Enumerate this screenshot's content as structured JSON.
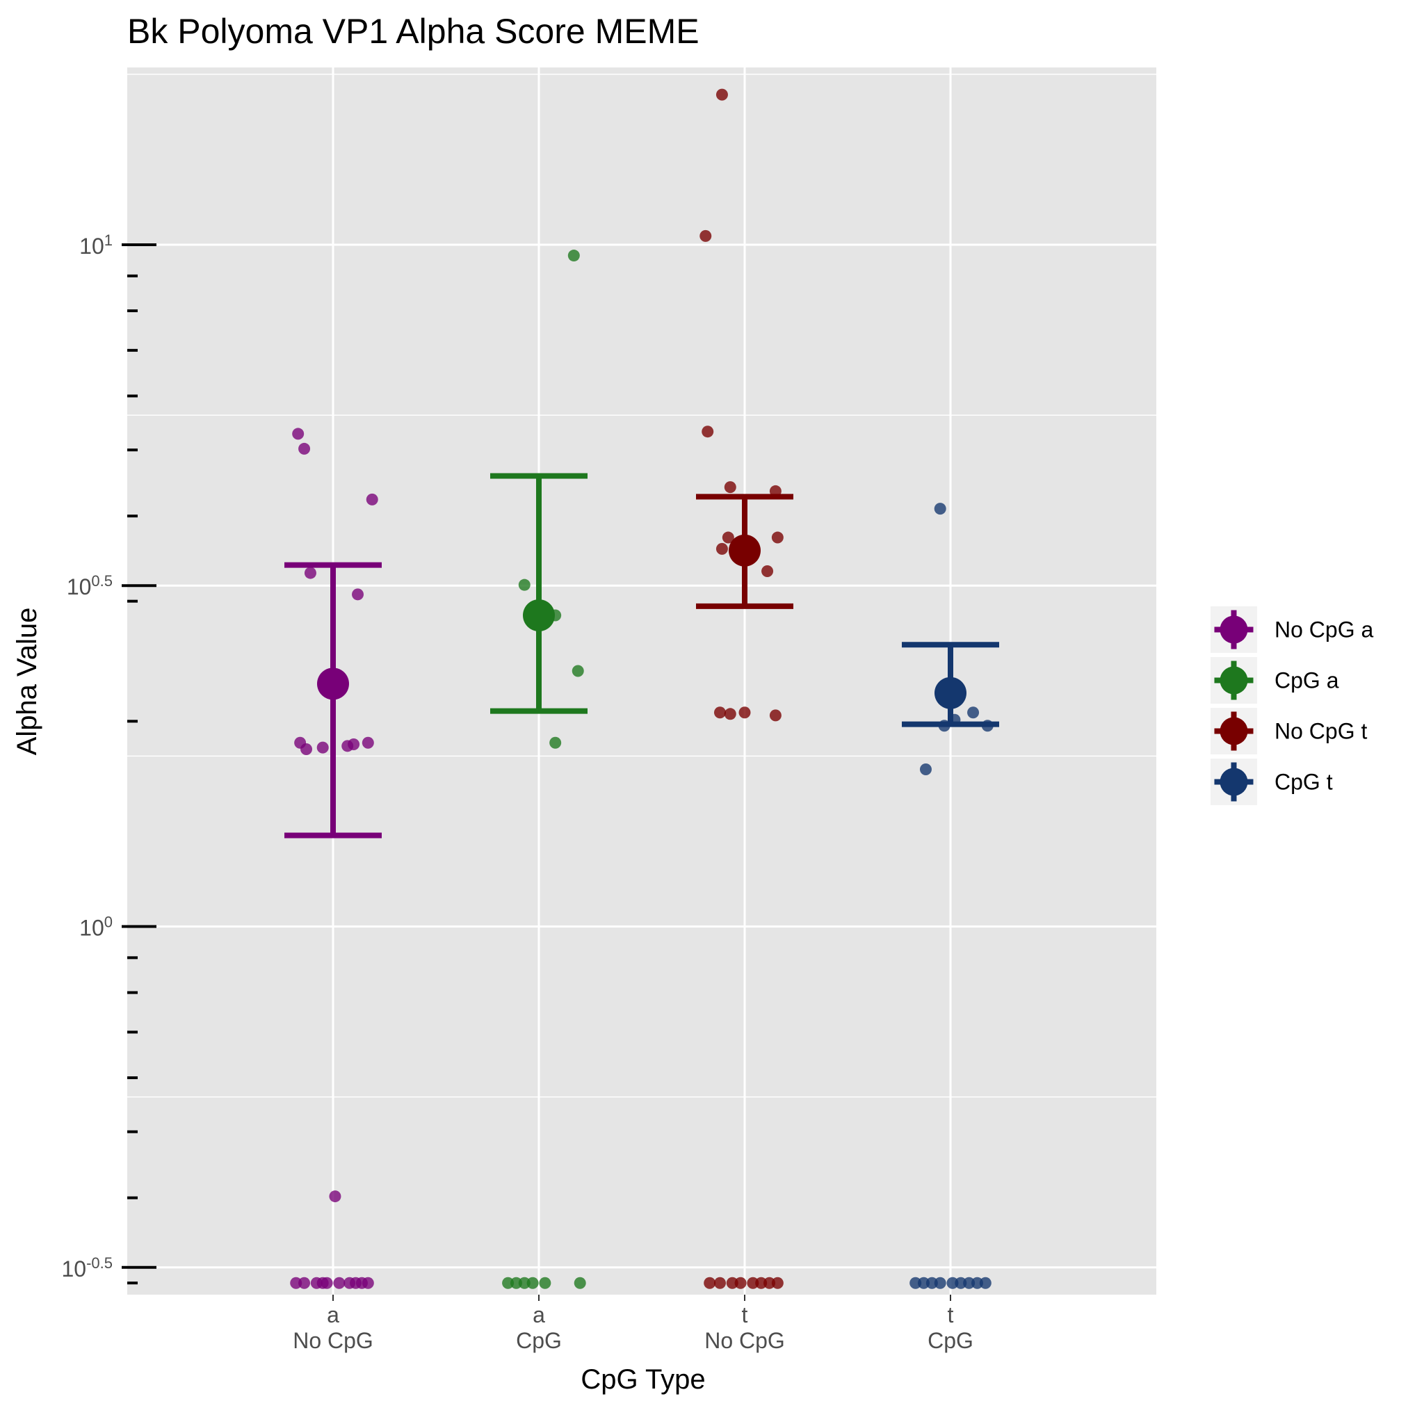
{
  "chart_data": {
    "type": "scatter",
    "title": "Bk Polyoma VP1 Alpha Score MEME",
    "xlabel": "CpG Type",
    "ylabel": "Alpha Value",
    "y_scale": "log10",
    "ylim_log10": [
      -0.54,
      1.26
    ],
    "grid": true,
    "legend_position": "right",
    "categories": [
      {
        "line1": "a",
        "line2": "No CpG"
      },
      {
        "line1": "a",
        "line2": "CpG"
      },
      {
        "line1": "t",
        "line2": "No CpG"
      },
      {
        "line1": "t",
        "line2": "CpG"
      }
    ],
    "y_ticks": [
      {
        "base": "10",
        "exp": "-0.5",
        "log": -0.5
      },
      {
        "base": "10",
        "exp": "0",
        "log": 0
      },
      {
        "base": "10",
        "exp": "0.5",
        "log": 0.5
      },
      {
        "base": "10",
        "exp": "1",
        "log": 1
      }
    ],
    "series": [
      {
        "name": "No CpG a",
        "color": "#780078",
        "category_index": 0,
        "mean": 2.27,
        "error_low": 1.36,
        "error_high": 3.39,
        "points": [
          {
            "x": -0.17,
            "y": 5.28
          },
          {
            "x": -0.14,
            "y": 5.02
          },
          {
            "x": 0.19,
            "y": 4.23
          },
          {
            "x": -0.11,
            "y": 3.3
          },
          {
            "x": 0.12,
            "y": 3.07
          },
          {
            "x": -0.16,
            "y": 1.86
          },
          {
            "x": -0.13,
            "y": 1.82
          },
          {
            "x": -0.05,
            "y": 1.83
          },
          {
            "x": 0.07,
            "y": 1.84
          },
          {
            "x": 0.1,
            "y": 1.85
          },
          {
            "x": 0.17,
            "y": 1.86
          },
          {
            "x": 0.01,
            "y": 0.402
          },
          {
            "x": -0.18,
            "y": 0.3
          },
          {
            "x": -0.14,
            "y": 0.3
          },
          {
            "x": -0.08,
            "y": 0.3
          },
          {
            "x": -0.05,
            "y": 0.3
          },
          {
            "x": -0.03,
            "y": 0.3
          },
          {
            "x": 0.03,
            "y": 0.3
          },
          {
            "x": 0.08,
            "y": 0.3
          },
          {
            "x": 0.11,
            "y": 0.3
          },
          {
            "x": 0.14,
            "y": 0.3
          },
          {
            "x": 0.17,
            "y": 0.3
          }
        ]
      },
      {
        "name": "CpG a",
        "color": "#1e781e",
        "category_index": 1,
        "mean": 2.86,
        "error_low": 2.07,
        "error_high": 4.58,
        "points": [
          {
            "x": 0.17,
            "y": 9.64
          },
          {
            "x": -0.07,
            "y": 3.17
          },
          {
            "x": 0.08,
            "y": 2.86
          },
          {
            "x": 0.19,
            "y": 2.37
          },
          {
            "x": 0.08,
            "y": 1.86
          },
          {
            "x": -0.15,
            "y": 0.3
          },
          {
            "x": -0.11,
            "y": 0.3
          },
          {
            "x": -0.07,
            "y": 0.3
          },
          {
            "x": -0.03,
            "y": 0.3
          },
          {
            "x": 0.03,
            "y": 0.3
          },
          {
            "x": 0.2,
            "y": 0.3
          }
        ]
      },
      {
        "name": "No CpG t",
        "color": "#780000",
        "category_index": 2,
        "mean": 3.56,
        "error_low": 2.95,
        "error_high": 4.27,
        "points": [
          {
            "x": -0.11,
            "y": 16.6
          },
          {
            "x": -0.19,
            "y": 10.3
          },
          {
            "x": -0.18,
            "y": 5.32
          },
          {
            "x": -0.07,
            "y": 4.41
          },
          {
            "x": 0.15,
            "y": 4.35
          },
          {
            "x": -0.08,
            "y": 3.72
          },
          {
            "x": 0.16,
            "y": 3.72
          },
          {
            "x": -0.11,
            "y": 3.58
          },
          {
            "x": 0.11,
            "y": 3.32
          },
          {
            "x": -0.12,
            "y": 2.06
          },
          {
            "x": -0.07,
            "y": 2.05
          },
          {
            "x": 0.0,
            "y": 2.06
          },
          {
            "x": 0.15,
            "y": 2.04
          },
          {
            "x": -0.17,
            "y": 0.3
          },
          {
            "x": -0.12,
            "y": 0.3
          },
          {
            "x": -0.06,
            "y": 0.3
          },
          {
            "x": -0.02,
            "y": 0.3
          },
          {
            "x": 0.04,
            "y": 0.3
          },
          {
            "x": 0.08,
            "y": 0.3
          },
          {
            "x": 0.12,
            "y": 0.3
          },
          {
            "x": 0.16,
            "y": 0.3
          }
        ]
      },
      {
        "name": "CpG t",
        "color": "#14376e",
        "category_index": 3,
        "mean": 2.2,
        "error_low": 1.98,
        "error_high": 2.59,
        "points": [
          {
            "x": -0.05,
            "y": 4.1
          },
          {
            "x": 0.11,
            "y": 2.06
          },
          {
            "x": 0.02,
            "y": 2.01
          },
          {
            "x": -0.03,
            "y": 1.97
          },
          {
            "x": 0.18,
            "y": 1.97
          },
          {
            "x": -0.12,
            "y": 1.7
          },
          {
            "x": -0.17,
            "y": 0.3
          },
          {
            "x": -0.13,
            "y": 0.3
          },
          {
            "x": -0.09,
            "y": 0.3
          },
          {
            "x": -0.05,
            "y": 0.3
          },
          {
            "x": 0.01,
            "y": 0.3
          },
          {
            "x": 0.05,
            "y": 0.3
          },
          {
            "x": 0.09,
            "y": 0.3
          },
          {
            "x": 0.13,
            "y": 0.3
          },
          {
            "x": 0.17,
            "y": 0.3
          }
        ]
      }
    ]
  }
}
